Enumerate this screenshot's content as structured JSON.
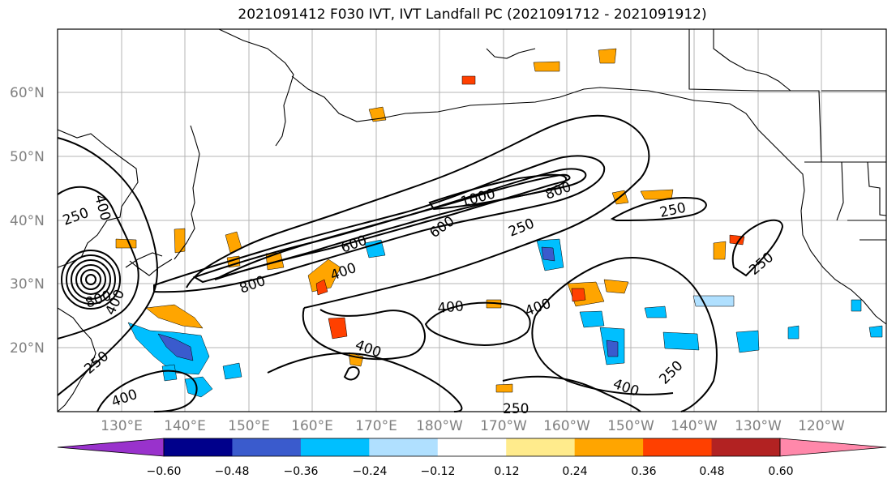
{
  "title": "2021091412 F030 IVT, IVT Landfall PC (2021091712 - 2021091912)",
  "lat_labels": [
    "60°N",
    "50°N",
    "40°N",
    "30°N",
    "20°N"
  ],
  "lon_labels": [
    "130°E",
    "140°E",
    "150°E",
    "160°E",
    "170°E",
    "180°W",
    "170°W",
    "160°W",
    "150°W",
    "140°W",
    "130°W",
    "120°W"
  ],
  "contour_labels": {
    "c250_w": "250",
    "c400_w": "400",
    "c600_a": "600",
    "c400_b": "400",
    "c800_a": "800",
    "c600_c": "600",
    "c1000": "1000",
    "c800_d": "800",
    "c250_e": "250",
    "c250_f": "250",
    "c250_g": "250",
    "c400_h": "400",
    "c400_i": "400",
    "c400_j": "400",
    "c400_k": "400",
    "c250_l": "250",
    "c250_m": "250",
    "c400_n": "400",
    "c250_o": "250",
    "c800_p": "800",
    "c400_q": "400"
  },
  "colorbar": {
    "ticks": [
      "−0.60",
      "−0.48",
      "−0.36",
      "−0.24",
      "−0.12",
      "0.12",
      "0.24",
      "0.36",
      "0.48",
      "0.60"
    ],
    "colors": [
      "#9932cc",
      "#00008b",
      "#3a5bcd",
      "#00bfff",
      "#b0e0ff",
      "#ffffff",
      "#ffeb8c",
      "#ffa500",
      "#ff4000",
      "#b22222",
      "#ff88aa"
    ]
  },
  "map_data": {
    "projection": "PlateCarree",
    "lon_range": [
      "120°E",
      "115°W"
    ],
    "lat_range": [
      "10°N",
      "70°N"
    ],
    "grid": true,
    "fields": [
      "IVT contours (black)",
      "IVT landfall PC (filled colors)"
    ]
  }
}
